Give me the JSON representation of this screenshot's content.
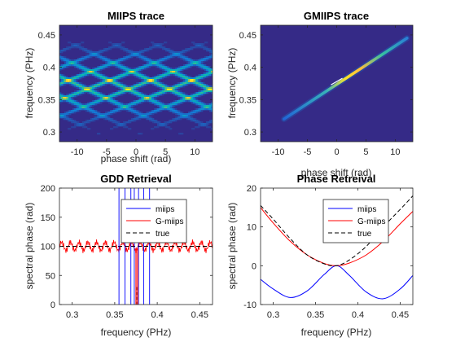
{
  "colors": {
    "parula_bg": "#352a87",
    "miips": "#0000ff",
    "gmiips": "#ff0000",
    "true": "#000000"
  },
  "chart_data": [
    {
      "type": "heatmap",
      "title": "MIIPS trace",
      "xlabel": "phase shift (rad)",
      "ylabel": "frequency (PHz)",
      "xlim": [
        -13,
        13
      ],
      "ylim": [
        0.285,
        0.465
      ],
      "xticks": [
        -10,
        -5,
        0,
        5,
        10
      ],
      "yticks": [
        0.3,
        0.35,
        0.4,
        0.45
      ],
      "xtick_labels": [
        "-10",
        "-5",
        "0",
        "5",
        "10"
      ],
      "ytick_labels": [
        "0.3",
        "0.35",
        "0.4",
        "0.45"
      ],
      "colormap": "parula",
      "pattern": "periodic diagonal ripples centered near 0.37 PHz"
    },
    {
      "type": "heatmap",
      "title": "GMIIPS trace",
      "xlabel": "phase shift (rad)",
      "ylabel": "frequency (PHz)",
      "xlim": [
        -13,
        13
      ],
      "ylim": [
        0.285,
        0.465
      ],
      "xticks": [
        -10,
        -5,
        0,
        5,
        10
      ],
      "yticks": [
        0.3,
        0.35,
        0.4,
        0.45
      ],
      "xtick_labels": [
        "-10",
        "-5",
        "0",
        "5",
        "10"
      ],
      "ytick_labels": [
        "0.3",
        "0.35",
        "0.4",
        "0.45"
      ],
      "colormap": "parula",
      "ridge": {
        "x": [
          -9,
          12
        ],
        "y": [
          0.32,
          0.445
        ]
      }
    },
    {
      "type": "line",
      "title": "GDD Retrieval",
      "xlabel": "frequency (PHz)",
      "ylabel": "spectral phase (rad)",
      "xlim": [
        0.285,
        0.465
      ],
      "ylim": [
        0,
        200
      ],
      "xticks": [
        0.3,
        0.35,
        0.4,
        0.45
      ],
      "yticks": [
        0,
        50,
        100,
        150,
        200
      ],
      "xtick_labels": [
        "0.3",
        "0.35",
        "0.4",
        "0.45"
      ],
      "ytick_labels": [
        "0",
        "50",
        "100",
        "150",
        "200"
      ],
      "legend_position": "top-right",
      "series": [
        {
          "name": "miips",
          "description": "vertical divergences near 0.35-0.39 PHz",
          "x": [
            0.355,
            0.362,
            0.369,
            0.373,
            0.378,
            0.384,
            0.391
          ]
        },
        {
          "name": "G-miips",
          "level": 100,
          "noise": 12
        },
        {
          "name": "true",
          "level": 100
        }
      ]
    },
    {
      "type": "line",
      "title": "Phase Retreival",
      "xlabel": "frequency (PHz)",
      "ylabel": "spectral phase (rad)",
      "xlim": [
        0.285,
        0.465
      ],
      "ylim": [
        -10,
        20
      ],
      "xticks": [
        0.3,
        0.35,
        0.4,
        0.45
      ],
      "yticks": [
        -10,
        0,
        10,
        20
      ],
      "xtick_labels": [
        "0.3",
        "0.35",
        "0.4",
        "0.45"
      ],
      "ytick_labels": [
        "-10",
        "0",
        "10",
        "20"
      ],
      "legend_position": "top-right",
      "series": [
        {
          "name": "miips",
          "x": [
            0.285,
            0.3,
            0.32,
            0.34,
            0.36,
            0.375,
            0.39,
            0.41,
            0.43,
            0.45,
            0.465
          ],
          "y": [
            -3.5,
            -6.0,
            -8.2,
            -6.5,
            -2.3,
            0.0,
            -2.5,
            -6.8,
            -8.5,
            -6.0,
            -2.5
          ]
        },
        {
          "name": "G-miips",
          "x": [
            0.285,
            0.3,
            0.32,
            0.34,
            0.36,
            0.375,
            0.39,
            0.41,
            0.43,
            0.45,
            0.465
          ],
          "y": [
            15.0,
            11.0,
            6.3,
            2.8,
            0.6,
            0.0,
            0.7,
            2.8,
            6.3,
            10.8,
            14.0
          ]
        },
        {
          "name": "true",
          "x": [
            0.285,
            0.3,
            0.32,
            0.34,
            0.36,
            0.375,
            0.39,
            0.41,
            0.43,
            0.45,
            0.465
          ],
          "y": [
            15.5,
            12.0,
            7.0,
            2.8,
            0.5,
            0.0,
            1.5,
            5.0,
            10.0,
            14.5,
            18.0
          ]
        }
      ]
    }
  ]
}
